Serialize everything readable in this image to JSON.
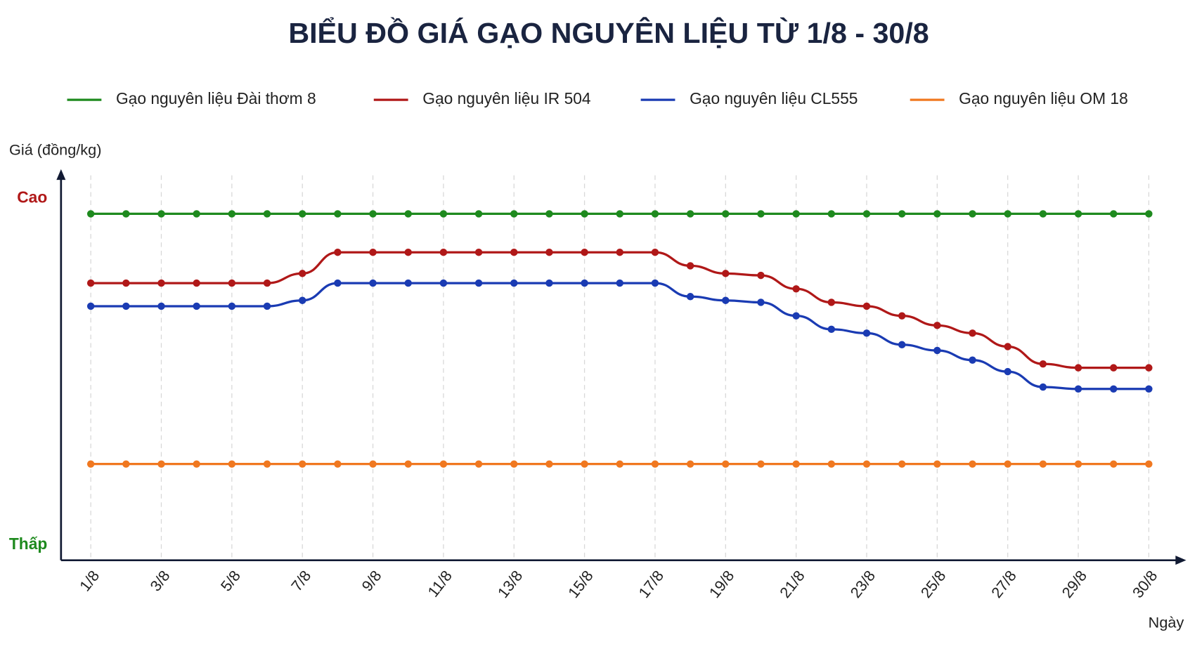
{
  "chart_data": {
    "type": "line",
    "title": "BIỂU ĐỒ GIÁ GẠO NGUYÊN LIỆU TỪ 1/8 - 30/8",
    "y_label": "Giá (đồng/kg)",
    "x_label": "Ngày",
    "categories": [
      "1/8",
      null,
      "3/8",
      null,
      "5/8",
      null,
      "7/8",
      null,
      "9/8",
      null,
      "11/8",
      null,
      "13/8",
      null,
      "15/8",
      null,
      "17/8",
      null,
      "19/8",
      null,
      "21/8",
      null,
      "23/8",
      null,
      "25/8",
      null,
      "27/8",
      null,
      "29/8",
      null,
      "30/8"
    ],
    "series": [
      {
        "name": "Gạo nguyên liệu Đài thơm 8",
        "color": "#1e8a1e",
        "values": [
          90,
          90,
          90,
          90,
          90,
          90,
          90,
          90,
          90,
          90,
          90,
          90,
          90,
          90,
          90,
          90,
          90,
          90,
          90,
          90,
          90,
          90,
          90,
          90,
          90,
          90,
          90,
          90,
          90,
          90,
          90
        ]
      },
      {
        "name": "Gạo nguyên liệu IR 504",
        "color": "#b01818",
        "values": [
          72,
          72,
          72,
          72,
          72,
          72,
          74.5,
          80,
          80,
          80,
          80,
          80,
          80,
          80,
          80,
          80,
          80,
          76.5,
          74.5,
          74,
          70.5,
          67,
          66,
          63.5,
          61,
          59,
          55.5,
          51,
          50,
          50,
          50
        ]
      },
      {
        "name": "Gạo nguyên liệu CL555",
        "color": "#1a3bb3",
        "values": [
          66,
          66,
          66,
          66,
          66,
          66,
          67.5,
          72,
          72,
          72,
          72,
          72,
          72,
          72,
          72,
          72,
          72,
          68.5,
          67.5,
          67,
          63.5,
          60,
          59,
          56,
          54.5,
          52,
          49,
          45,
          44.5,
          44.5,
          44.5
        ]
      },
      {
        "name": "Gạo nguyên liệu OM 18",
        "color": "#f07820",
        "values": [
          25,
          25,
          25,
          25,
          25,
          25,
          25,
          25,
          25,
          25,
          25,
          25,
          25,
          25,
          25,
          25,
          25,
          25,
          25,
          25,
          25,
          25,
          25,
          25,
          25,
          25,
          25,
          25,
          25,
          25,
          25
        ]
      }
    ],
    "ylim": [
      0,
      100
    ],
    "yticks": [
      {
        "value": 4,
        "label": "Thấp"
      },
      {
        "value": 94,
        "label": "Cao"
      }
    ],
    "ytick_colors": [
      "#1e8a1e",
      "#b01818"
    ],
    "grid": true,
    "legend": "top"
  }
}
